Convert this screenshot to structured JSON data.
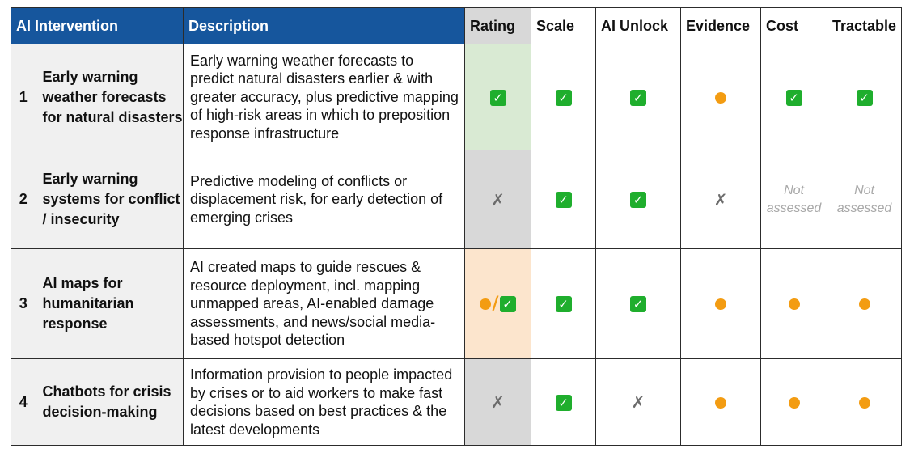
{
  "headers": {
    "intervention": "AI Intervention",
    "description": "Description",
    "rating": "Rating",
    "scale": "Scale",
    "ai_unlock": "AI Unlock",
    "evidence": "Evidence",
    "cost": "Cost",
    "tractable": "Tractable"
  },
  "colors": {
    "header_blue": "#16569d",
    "check_green": "#1fae2d",
    "dot_orange": "#f39c12",
    "rating_green_bg": "#d9ead3",
    "rating_grey_bg": "#d8d8d8",
    "rating_orange_bg": "#fce5cd"
  },
  "icons": {
    "check": "✓",
    "cross": "✗",
    "slash": "/"
  },
  "not_assessed": {
    "line1": "Not",
    "line2": "assessed"
  },
  "rows": [
    {
      "number": "1",
      "name": "Early warning weather forecasts for natural disasters",
      "description": "Early warning weather forecasts to predict natural disasters earlier & with greater accuracy, plus predictive mapping of high-risk areas in which to preposition response infrastructure",
      "rating": "check",
      "scale": "check",
      "ai_unlock": "check",
      "evidence": "partial",
      "cost": "check",
      "tractable": "check"
    },
    {
      "number": "2",
      "name": "Early warning systems for conflict / insecurity",
      "description": "Predictive modeling of conflicts or displacement risk, for early detection of emerging crises",
      "rating": "cross",
      "scale": "check",
      "ai_unlock": "check",
      "evidence": "cross",
      "cost": "not-assessed",
      "tractable": "not-assessed"
    },
    {
      "number": "3",
      "name": "AI maps for humanitarian response",
      "description": "AI created maps to guide rescues & resource deployment, incl. mapping unmapped areas, AI-enabled damage assessments, and news/social media-based hotspot detection",
      "rating": "partial/check",
      "scale": "check",
      "ai_unlock": "check",
      "evidence": "partial",
      "cost": "partial",
      "tractable": "partial"
    },
    {
      "number": "4",
      "name": "Chatbots for crisis decision-making",
      "description": "Information provision to people impacted by crises or to aid workers to make fast decisions based on best practices & the latest developments",
      "rating": "cross",
      "scale": "check",
      "ai_unlock": "cross",
      "evidence": "partial",
      "cost": "partial",
      "tractable": "partial"
    }
  ]
}
